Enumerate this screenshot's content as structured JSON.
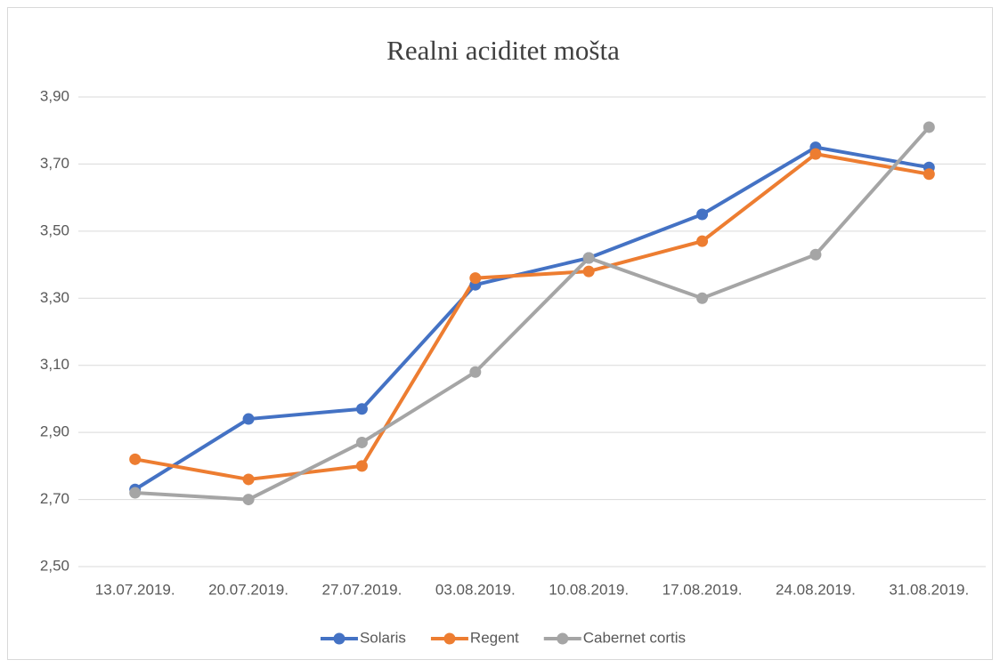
{
  "chart_data": {
    "type": "line",
    "title": "Realni aciditet mošta",
    "categories": [
      "13.07.2019.",
      "20.07.2019.",
      "27.07.2019.",
      "03.08.2019.",
      "10.08.2019.",
      "17.08.2019.",
      "24.08.2019.",
      "31.08.2019."
    ],
    "series": [
      {
        "name": "Solaris",
        "color": "#4472c4",
        "values": [
          2.73,
          2.94,
          2.97,
          3.34,
          3.42,
          3.55,
          3.75,
          3.69
        ]
      },
      {
        "name": "Regent",
        "color": "#ed7d31",
        "values": [
          2.82,
          2.76,
          2.8,
          3.36,
          3.38,
          3.47,
          3.73,
          3.67
        ]
      },
      {
        "name": "Cabernet cortis",
        "color": "#a5a5a5",
        "values": [
          2.72,
          2.7,
          2.87,
          3.08,
          3.42,
          3.3,
          3.43,
          3.81
        ]
      }
    ],
    "ylim": [
      2.5,
      3.9
    ],
    "yticks": [
      {
        "value": 2.5,
        "label": "2,50"
      },
      {
        "value": 2.7,
        "label": "2,70"
      },
      {
        "value": 2.9,
        "label": "2,90"
      },
      {
        "value": 3.1,
        "label": "3,10"
      },
      {
        "value": 3.3,
        "label": "3,30"
      },
      {
        "value": 3.5,
        "label": "3,50"
      },
      {
        "value": 3.7,
        "label": "3,70"
      },
      {
        "value": 3.9,
        "label": "3,90"
      }
    ],
    "grid": true,
    "legend": "bottom"
  }
}
